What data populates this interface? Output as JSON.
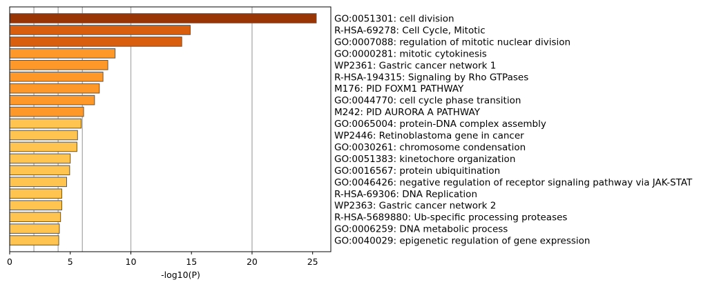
{
  "chart_data": {
    "type": "bar",
    "orientation": "horizontal",
    "title": "",
    "xlabel": "-log10(P)",
    "ylabel": "",
    "xlim": [
      0,
      26.5
    ],
    "xticks": [
      0,
      5,
      10,
      15,
      20,
      25
    ],
    "gridlines_x": [
      2,
      4,
      6,
      10,
      20
    ],
    "grid": "vertical lines at selected x positions",
    "categories": [
      "GO:0051301: cell division",
      "R-HSA-69278: Cell Cycle, Mitotic",
      "GO:0007088: regulation of mitotic nuclear division",
      "GO:0000281: mitotic cytokinesis",
      "WP2361: Gastric cancer network 1",
      "R-HSA-194315: Signaling by Rho GTPases",
      "M176: PID FOXM1 PATHWAY",
      "GO:0044770: cell cycle phase transition",
      "M242: PID AURORA A PATHWAY",
      "GO:0065004: protein-DNA complex assembly",
      "WP2446: Retinoblastoma gene in cancer",
      "GO:0030261: chromosome condensation",
      "GO:0051383: kinetochore organization",
      "GO:0016567: protein ubiquitination",
      "GO:0046426: negative regulation of receptor signaling pathway via JAK-STAT",
      "R-HSA-69306: DNA Replication",
      "WP2363: Gastric cancer network 2",
      "R-HSA-5689880: Ub-specific processing proteases",
      "GO:0006259: DNA metabolic process",
      "GO:0040029: epigenetic regulation of gene expression"
    ],
    "values": [
      25.3,
      14.9,
      14.2,
      8.7,
      8.1,
      7.7,
      7.4,
      7.0,
      6.1,
      5.9,
      5.6,
      5.55,
      5.0,
      4.95,
      4.7,
      4.3,
      4.3,
      4.2,
      4.1,
      4.05
    ],
    "colors": [
      "#993404",
      "#d95f0e",
      "#d95f0e",
      "#fe9929",
      "#fe9929",
      "#fe9929",
      "#fe9929",
      "#fe9929",
      "#fe9929",
      "#fec44f",
      "#fec44f",
      "#fec44f",
      "#fec44f",
      "#fec44f",
      "#fec44f",
      "#fec44f",
      "#fec44f",
      "#fec44f",
      "#fec44f",
      "#fec44f"
    ],
    "bar_edge_color": "#555555",
    "gridline_color": "#b0b0b0"
  }
}
